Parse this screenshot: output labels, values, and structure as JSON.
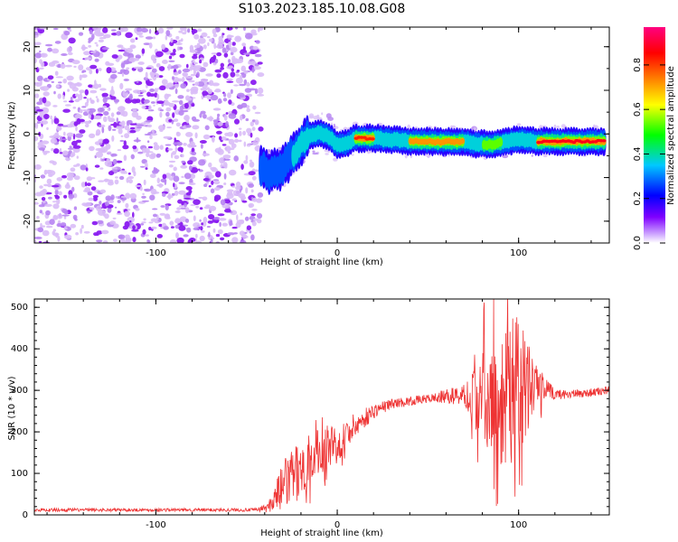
{
  "figure": {
    "title": "S103.2023.185.10.08.G08"
  },
  "chart_data": [
    {
      "type": "heatmap",
      "name": "spectrogram",
      "xlabel": "Height of straight line (km)",
      "ylabel": "Frequency (Hz)",
      "xlim": [
        -167,
        150
      ],
      "ylim": [
        -25,
        24.5
      ],
      "x_ticks": [
        -100,
        0,
        100
      ],
      "y_ticks": [
        -20,
        -10,
        0,
        10,
        20
      ],
      "colorbar": {
        "label": "Normalized spectral amplitude",
        "range": [
          0.0,
          0.97
        ],
        "ticks": [
          "0.0",
          "0.2",
          "0.4",
          "0.6",
          "0.8"
        ],
        "tick_values": [
          0.0,
          0.2,
          0.4,
          0.6,
          0.8
        ]
      },
      "colormap": [
        "#ffffff",
        "#7f00ff",
        "#0000ff",
        "#00c8ff",
        "#00ff00",
        "#ffff00",
        "#ff8000",
        "#ff0000",
        "#ff0080"
      ],
      "noise_region_x": [
        -167,
        -42
      ],
      "ridge": [
        {
          "x": -42,
          "f": -8.0
        },
        {
          "x": -36,
          "f": -8.8
        },
        {
          "x": -30,
          "f": -7.5
        },
        {
          "x": -25,
          "f": -5.0
        },
        {
          "x": -20,
          "f": -2.5
        },
        {
          "x": -15,
          "f": -0.5
        },
        {
          "x": -10,
          "f": 0.2
        },
        {
          "x": -5,
          "f": -0.5
        },
        {
          "x": 0,
          "f": -2.5
        },
        {
          "x": 5,
          "f": -2.2
        },
        {
          "x": 10,
          "f": -1.0
        },
        {
          "x": 20,
          "f": -1.0
        },
        {
          "x": 30,
          "f": -1.3
        },
        {
          "x": 40,
          "f": -1.7
        },
        {
          "x": 50,
          "f": -1.7
        },
        {
          "x": 60,
          "f": -1.8
        },
        {
          "x": 70,
          "f": -1.7
        },
        {
          "x": 75,
          "f": -2.2
        },
        {
          "x": 80,
          "f": -2.3
        },
        {
          "x": 85,
          "f": -2.5
        },
        {
          "x": 90,
          "f": -2.0
        },
        {
          "x": 100,
          "f": -1.3
        },
        {
          "x": 110,
          "f": -1.7
        },
        {
          "x": 120,
          "f": -1.7
        },
        {
          "x": 148,
          "f": -1.7
        }
      ],
      "ridge_peak_segments": [
        {
          "x0": 10,
          "x1": 20,
          "f": -1.0,
          "amp": 0.85
        },
        {
          "x0": 40,
          "x1": 70,
          "f": -1.7,
          "amp": 0.8
        },
        {
          "x0": 110,
          "x1": 147,
          "f": -1.7,
          "amp": 0.9
        },
        {
          "x0": 80,
          "x1": 90,
          "f": -2.3,
          "amp": 0.55
        }
      ]
    },
    {
      "type": "line",
      "name": "snr",
      "xlabel": "Height of straight line (km)",
      "ylabel": "SNR (10 * v/v)",
      "xlim": [
        -167,
        150
      ],
      "ylim": [
        0,
        520
      ],
      "x_ticks": [
        -100,
        0,
        100
      ],
      "y_ticks": [
        0,
        100,
        200,
        300,
        400,
        500
      ],
      "line_color": "#ee3333",
      "envelope": [
        {
          "x": -167,
          "base": 12,
          "jitter": 4
        },
        {
          "x": -45,
          "base": 12,
          "jitter": 4
        },
        {
          "x": -38,
          "base": 18,
          "jitter": 12
        },
        {
          "x": -30,
          "base": 70,
          "jitter": 60
        },
        {
          "x": -20,
          "base": 110,
          "jitter": 70
        },
        {
          "x": -10,
          "base": 150,
          "jitter": 60
        },
        {
          "x": 0,
          "base": 175,
          "jitter": 50
        },
        {
          "x": 10,
          "base": 215,
          "jitter": 30
        },
        {
          "x": 20,
          "base": 250,
          "jitter": 18
        },
        {
          "x": 30,
          "base": 268,
          "jitter": 12
        },
        {
          "x": 50,
          "base": 280,
          "jitter": 10
        },
        {
          "x": 70,
          "base": 290,
          "jitter": 25
        },
        {
          "x": 78,
          "base": 300,
          "jitter": 120
        },
        {
          "x": 90,
          "base": 300,
          "jitter": 180
        },
        {
          "x": 100,
          "base": 300,
          "jitter": 180
        },
        {
          "x": 111,
          "base": 305,
          "jitter": 50
        },
        {
          "x": 120,
          "base": 290,
          "jitter": 12
        },
        {
          "x": 135,
          "base": 292,
          "jitter": 10
        },
        {
          "x": 150,
          "base": 300,
          "jitter": 10
        }
      ]
    }
  ]
}
